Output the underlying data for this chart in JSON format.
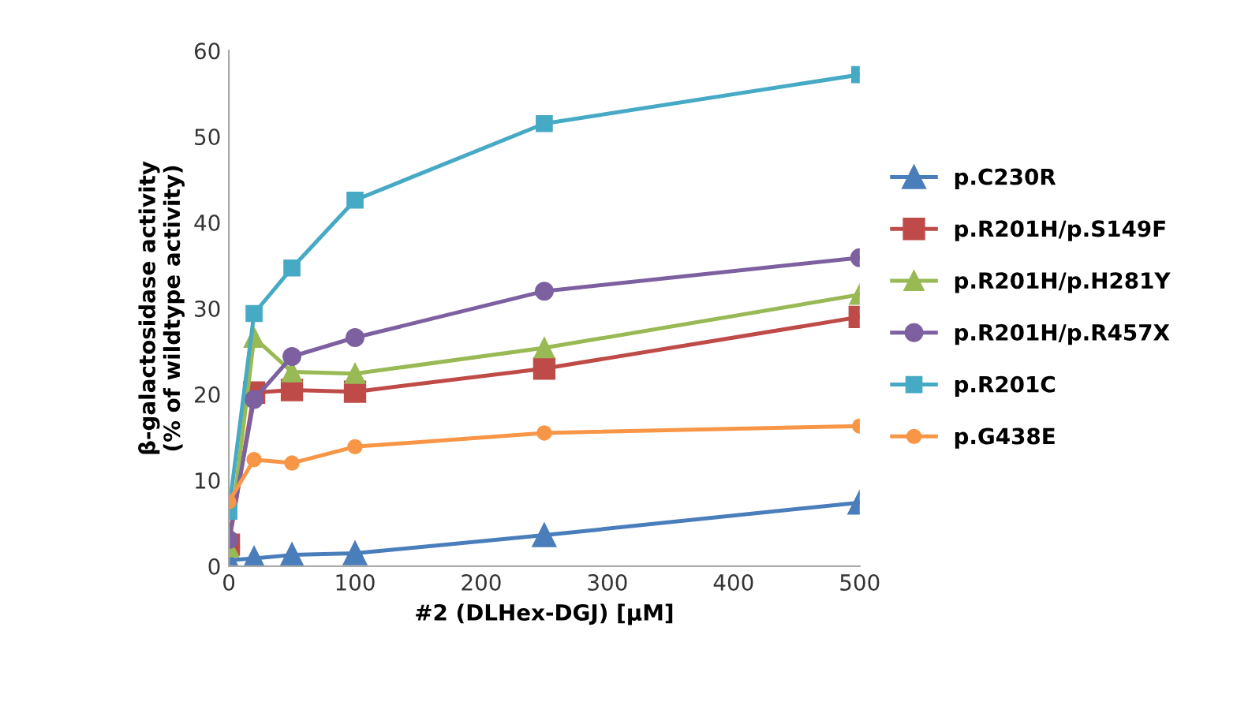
{
  "chart_data": {
    "type": "line",
    "xlabel": "#2 (DLHex-DGJ) [µM]",
    "ylabel": "β-galactosidase activity\n(% of wildtype activity)",
    "x": [
      0,
      20,
      50,
      100,
      250,
      500
    ],
    "xlim": [
      0,
      500
    ],
    "xticks": [
      0,
      100,
      200,
      300,
      400,
      500
    ],
    "ylim": [
      0,
      60
    ],
    "yticks": [
      0,
      10,
      20,
      30,
      40,
      50,
      60
    ],
    "grid": false,
    "legend": "right",
    "series": [
      {
        "name": "p.C230R",
        "color": "#4a7ebb",
        "marker": "triangle",
        "values": [
          0.7,
          0.9,
          1.3,
          1.5,
          3.6,
          7.4
        ]
      },
      {
        "name": "p.R201H/p.S149F",
        "color": "#be4b48",
        "marker": "square",
        "values": [
          2.5,
          20.2,
          20.5,
          20.3,
          23.0,
          29.0
        ]
      },
      {
        "name": "p.R201H/p.H281Y",
        "color": "#98b954",
        "marker": "triangle",
        "values": [
          2.2,
          26.6,
          22.6,
          22.4,
          25.4,
          31.6
        ]
      },
      {
        "name": "p.R201H/p.R457X",
        "color": "#7d60a0",
        "marker": "circle",
        "values": [
          3.1,
          19.4,
          24.4,
          26.6,
          32.0,
          35.9
        ]
      },
      {
        "name": "p.R201C",
        "color": "#46aac5",
        "marker": "square",
        "values": [
          6.4,
          29.4,
          34.7,
          42.6,
          51.5,
          57.2
        ]
      },
      {
        "name": "p.G438E",
        "color": "#f79646",
        "marker": "circle",
        "values": [
          7.5,
          12.4,
          12.0,
          13.9,
          15.5,
          16.3
        ]
      }
    ]
  }
}
